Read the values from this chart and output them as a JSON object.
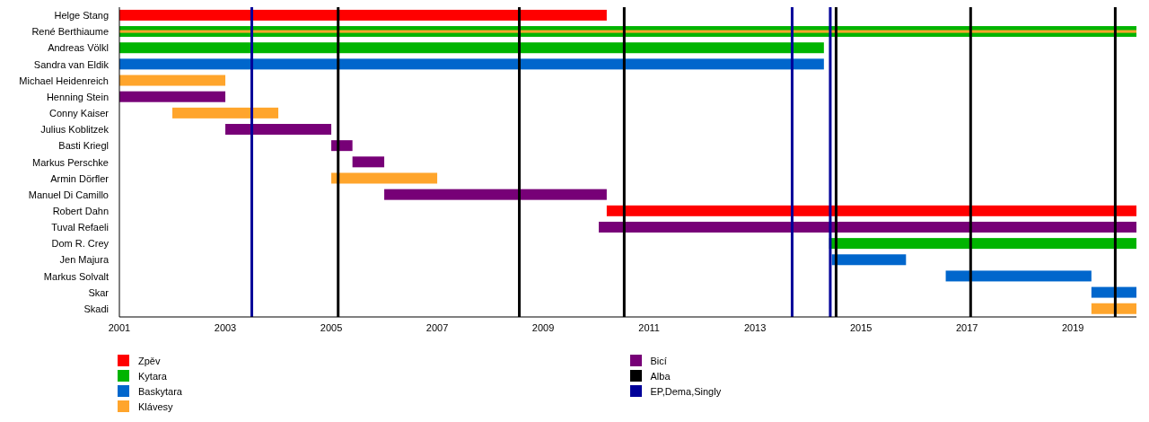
{
  "chart_data": {
    "type": "bar",
    "orientation": "horizontal",
    "categories": [
      "Helge Stang",
      "René Berthiaume",
      "Andreas Völkl",
      "Sandra van Eldik",
      "Michael Heidenreich",
      "Henning Stein",
      "Conny Kaiser",
      "Julius Koblitzek",
      "Basti Kriegl",
      "Markus Perschke",
      "Armin Dörfler",
      "Manuel Di Camillo",
      "Robert Dahn",
      "Tuval Refaeli",
      "Dom R. Crey",
      "Jen Majura",
      "Markus Solvalt",
      "Skar",
      "Skadi"
    ],
    "series": [
      {
        "name": "Zpěv",
        "color": "#ff0000",
        "base": [
          2001,
          null,
          null,
          null,
          null,
          null,
          null,
          null,
          null,
          null,
          null,
          null,
          2010.2,
          null,
          null,
          null,
          null,
          null,
          null
        ],
        "values": [
          9.2,
          null,
          null,
          null,
          null,
          null,
          null,
          null,
          null,
          null,
          null,
          null,
          10,
          null,
          null,
          null,
          null,
          null,
          null
        ]
      },
      {
        "name": "Kytara",
        "color": "#00b400",
        "base": [
          null,
          2001,
          2001,
          null,
          null,
          null,
          null,
          null,
          null,
          null,
          null,
          null,
          null,
          null,
          2014.4,
          null,
          null,
          null,
          null
        ],
        "values": [
          null,
          19.2,
          13.3,
          null,
          null,
          null,
          null,
          null,
          null,
          null,
          null,
          null,
          null,
          null,
          5.8,
          null,
          null,
          null,
          null
        ]
      },
      {
        "name": "Baskytara",
        "color": "#0066cc",
        "base": [
          null,
          null,
          null,
          2001,
          null,
          null,
          null,
          null,
          null,
          null,
          null,
          null,
          null,
          null,
          null,
          2014.45,
          2016.6,
          2019.35,
          null
        ],
        "values": [
          null,
          null,
          null,
          13.3,
          null,
          null,
          null,
          null,
          null,
          null,
          null,
          null,
          null,
          null,
          null,
          1.4,
          2.75,
          0.85,
          null
        ]
      },
      {
        "name": "Klávesy",
        "color": "#ffa52c",
        "base": [
          null,
          2001,
          null,
          null,
          2001,
          null,
          2002,
          null,
          null,
          null,
          2005,
          null,
          null,
          null,
          null,
          null,
          null,
          null,
          2019.35
        ],
        "values": [
          null,
          19.2,
          null,
          null,
          2,
          null,
          2,
          null,
          null,
          null,
          2,
          null,
          null,
          null,
          null,
          null,
          null,
          null,
          0.85
        ]
      },
      {
        "name": "Bicí",
        "color": "#770077",
        "base": [
          null,
          null,
          null,
          null,
          null,
          2001,
          null,
          2003,
          2005,
          2005.4,
          null,
          2006,
          null,
          2010.05,
          null,
          null,
          null,
          null,
          null
        ],
        "values": [
          null,
          null,
          null,
          null,
          null,
          2,
          null,
          2,
          0.4,
          0.6,
          null,
          4.2,
          null,
          10.15,
          null,
          null,
          null,
          null,
          null
        ]
      }
    ],
    "ref_lines": [
      {
        "axis": "x",
        "value": 2005.13,
        "label": "Alba",
        "color": "#000000"
      },
      {
        "axis": "x",
        "value": 2008.55,
        "color": "#000000"
      },
      {
        "axis": "x",
        "value": 2010.53,
        "color": "#000000"
      },
      {
        "axis": "x",
        "value": 2014.53,
        "color": "#000000"
      },
      {
        "axis": "x",
        "value": 2017.07,
        "color": "#000000"
      },
      {
        "axis": "x",
        "value": 2019.8,
        "color": "#000000"
      },
      {
        "axis": "x",
        "value": 2003.5,
        "label": "EP,Dema,Singly",
        "color": "#000099"
      },
      {
        "axis": "x",
        "value": 2013.7,
        "color": "#000099"
      },
      {
        "axis": "x",
        "value": 2014.42,
        "color": "#000099"
      }
    ],
    "xlim": [
      2001,
      2020.2
    ],
    "xticks": [
      2001,
      2003,
      2005,
      2007,
      2009,
      2011,
      2013,
      2015,
      2017,
      2019
    ],
    "legend": "bottom"
  }
}
